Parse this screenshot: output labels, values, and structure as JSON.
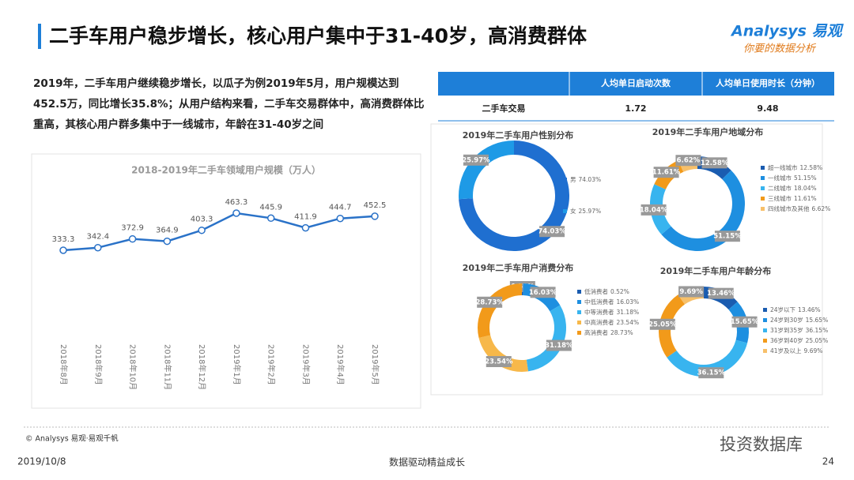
{
  "header": {
    "title": "二手车用户稳步增长，核心用户集中于31-40岁，高消费群体",
    "logo": "Analysys 易观",
    "slogan": "你要的数据分析"
  },
  "intro": [
    "2019年，二手车用户继续稳步增长，以瓜子为例2019年5月，用户规模达到",
    "452.5万，同比增长35.8%；从用户结构来看，二手车交易群体中，高消费群体比",
    "重高，其核心用户群多集中于一线城市，年龄在31-40岁之间"
  ],
  "table": {
    "header": [
      "人均单日启动次数",
      "人均单日使用时长（分钟）"
    ],
    "rows": [
      [
        "二手车交易",
        "1.72",
        "9.48"
      ]
    ]
  },
  "chart_data": [
    {
      "type": "line",
      "title": "2018-2019年二手车领域用户规模（万人）",
      "categories": [
        "2018年8月",
        "2018年9月",
        "2018年10月",
        "2018年11月",
        "2018年12月",
        "2019年1月",
        "2019年2月",
        "2019年3月",
        "2019年4月",
        "2019年5月"
      ],
      "values": [
        333.3,
        342.4,
        372.9,
        364.9,
        403.3,
        463.3,
        445.9,
        411.9,
        444.7,
        452.5
      ],
      "color": "#2a72c8"
    },
    {
      "type": "donut",
      "title": "2019年二手车用户性别分布",
      "categories": [
        "男",
        "女"
      ],
      "values": [
        74.03,
        25.97
      ],
      "value_labels": [
        "74.03%",
        "25.97%"
      ],
      "colors": [
        "#1f6fd0",
        "#1e9ae6"
      ]
    },
    {
      "type": "donut",
      "title": "2019年二手车用户地域分布",
      "categories": [
        "超一线城市",
        "一线城市",
        "二线城市",
        "三线城市",
        "四线城市及其他"
      ],
      "values": [
        12.58,
        51.15,
        18.04,
        11.61,
        6.62
      ],
      "value_labels": [
        "12.58%",
        "51.15%",
        "18.04%",
        "11.61%",
        "6.62%"
      ],
      "colors": [
        "#1a5cb0",
        "#1e8fe0",
        "#38b4ef",
        "#f29a1a",
        "#f7c06a"
      ]
    },
    {
      "type": "donut",
      "title": "2019年二手车用户消费分布",
      "categories": [
        "低消费者",
        "中低消费者",
        "中等消费者",
        "中高消费者",
        "高消费者"
      ],
      "values": [
        0.52,
        16.03,
        31.18,
        23.54,
        28.73
      ],
      "value_labels": [
        "0.52%",
        "16.03%",
        "31.18%",
        "23.54%",
        "28.73%"
      ],
      "colors": [
        "#1a5cb0",
        "#1e8fe0",
        "#38b4ef",
        "#f7b84a",
        "#f29a1a"
      ]
    },
    {
      "type": "donut",
      "title": "2019年二手车用户年龄分布",
      "categories": [
        "24岁以下",
        "24岁到30岁",
        "31岁到35岁",
        "36岁到40岁",
        "41岁及以上"
      ],
      "values": [
        13.46,
        15.65,
        36.15,
        25.05,
        9.69
      ],
      "value_labels": [
        "13.46%",
        "15.65%",
        "36.15%",
        "25.05%",
        "9.69%"
      ],
      "colors": [
        "#1a5cb0",
        "#1e8fe0",
        "#38b4ef",
        "#f29a1a",
        "#f7c06a"
      ]
    }
  ],
  "footer": {
    "copyright": "© Analysys 易观·易观千帆",
    "watermark": "投资数据库",
    "date": "2019/10/8",
    "slogan": "数据驱动精益成长",
    "page": "24"
  }
}
